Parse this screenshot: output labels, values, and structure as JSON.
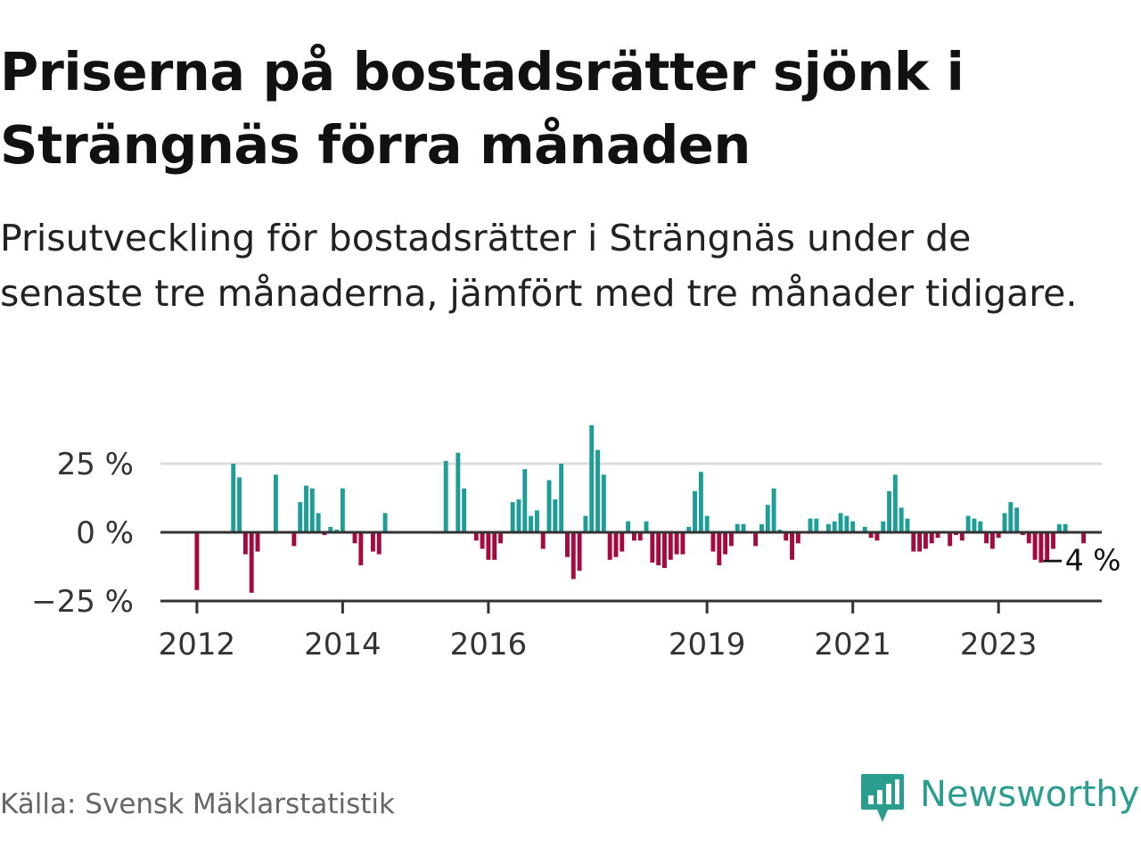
{
  "header": {
    "title": "Priserna på bostadsrätter sjönk i Strängnäs förra månaden",
    "subtitle": "Prisutveckling för bostadsrätter i Strängnäs under de senaste tre månaderna, jämfört med tre månader tidigare."
  },
  "footer": {
    "source": "Källa: Svensk Mäklarstatistik",
    "brand": "Newsworthy"
  },
  "colors": {
    "positive": "#1e9e96",
    "negative": "#a5093e",
    "gridline": "#dddddd",
    "axis": "#333333",
    "brand": "#2a9d8f"
  },
  "icons": {
    "logo": "bar-chart-speech-bubble-icon"
  },
  "chart_data": {
    "type": "bar",
    "title": "",
    "xlabel": "",
    "ylabel": "",
    "ylim": [
      -25,
      40
    ],
    "yticks": [
      {
        "value": 25,
        "label": "25 %"
      },
      {
        "value": 0,
        "label": "0 %"
      },
      {
        "value": -25,
        "label": "−25 %"
      }
    ],
    "xticks": [
      {
        "value": "2012-01",
        "label": "2012"
      },
      {
        "value": "2014-01",
        "label": "2014"
      },
      {
        "value": "2016-01",
        "label": "2016"
      },
      {
        "value": "2019-01",
        "label": "2019"
      },
      {
        "value": "2021-01",
        "label": "2021"
      },
      {
        "value": "2023-01",
        "label": "2023"
      }
    ],
    "x_start": "2011-07",
    "x_end": "2024-06",
    "grid": true,
    "legend": "none",
    "last_label": "−4 %",
    "series": [
      {
        "values": [
          [
            "2012-01",
            -21
          ],
          [
            "2012-07",
            25
          ],
          [
            "2012-08",
            20
          ],
          [
            "2012-09",
            -8
          ],
          [
            "2012-10",
            -22
          ],
          [
            "2012-11",
            -7
          ],
          [
            "2013-02",
            21
          ],
          [
            "2013-05",
            -5
          ],
          [
            "2013-06",
            11
          ],
          [
            "2013-07",
            17
          ],
          [
            "2013-08",
            16
          ],
          [
            "2013-09",
            7
          ],
          [
            "2013-10",
            -1
          ],
          [
            "2013-11",
            2
          ],
          [
            "2013-12",
            1
          ],
          [
            "2014-01",
            16
          ],
          [
            "2014-03",
            -4
          ],
          [
            "2014-04",
            -12
          ],
          [
            "2014-06",
            -7
          ],
          [
            "2014-07",
            -8
          ],
          [
            "2014-08",
            7
          ],
          [
            "2015-06",
            26
          ],
          [
            "2015-08",
            29
          ],
          [
            "2015-09",
            16
          ],
          [
            "2015-11",
            -3
          ],
          [
            "2015-12",
            -6
          ],
          [
            "2016-01",
            -10
          ],
          [
            "2016-02",
            -10
          ],
          [
            "2016-03",
            -4
          ],
          [
            "2016-05",
            11
          ],
          [
            "2016-06",
            12
          ],
          [
            "2016-07",
            23
          ],
          [
            "2016-08",
            6
          ],
          [
            "2016-09",
            8
          ],
          [
            "2016-10",
            -6
          ],
          [
            "2016-11",
            19
          ],
          [
            "2016-12",
            12
          ],
          [
            "2017-01",
            25
          ],
          [
            "2017-02",
            -9
          ],
          [
            "2017-03",
            -17
          ],
          [
            "2017-04",
            -14
          ],
          [
            "2017-05",
            6
          ],
          [
            "2017-06",
            39
          ],
          [
            "2017-07",
            30
          ],
          [
            "2017-08",
            21
          ],
          [
            "2017-09",
            -10
          ],
          [
            "2017-10",
            -9
          ],
          [
            "2017-11",
            -7
          ],
          [
            "2017-12",
            4
          ],
          [
            "2018-01",
            -3
          ],
          [
            "2018-02",
            -3
          ],
          [
            "2018-03",
            4
          ],
          [
            "2018-04",
            -11
          ],
          [
            "2018-05",
            -12
          ],
          [
            "2018-06",
            -13
          ],
          [
            "2018-07",
            -10
          ],
          [
            "2018-08",
            -8
          ],
          [
            "2018-09",
            -8
          ],
          [
            "2018-10",
            2
          ],
          [
            "2018-11",
            15
          ],
          [
            "2018-12",
            22
          ],
          [
            "2019-01",
            6
          ],
          [
            "2019-02",
            -7
          ],
          [
            "2019-03",
            -12
          ],
          [
            "2019-04",
            -8
          ],
          [
            "2019-05",
            -5
          ],
          [
            "2019-06",
            3
          ],
          [
            "2019-07",
            3
          ],
          [
            "2019-09",
            -5
          ],
          [
            "2019-10",
            3
          ],
          [
            "2019-11",
            10
          ],
          [
            "2019-12",
            16
          ],
          [
            "2020-01",
            1
          ],
          [
            "2020-02",
            -3
          ],
          [
            "2020-03",
            -10
          ],
          [
            "2020-04",
            -4
          ],
          [
            "2020-06",
            5
          ],
          [
            "2020-07",
            5
          ],
          [
            "2020-09",
            3
          ],
          [
            "2020-10",
            4
          ],
          [
            "2020-11",
            7
          ],
          [
            "2020-12",
            6
          ],
          [
            "2021-01",
            4
          ],
          [
            "2021-03",
            2
          ],
          [
            "2021-04",
            -2
          ],
          [
            "2021-05",
            -3
          ],
          [
            "2021-06",
            4
          ],
          [
            "2021-07",
            15
          ],
          [
            "2021-08",
            21
          ],
          [
            "2021-09",
            9
          ],
          [
            "2021-10",
            5
          ],
          [
            "2021-11",
            -7
          ],
          [
            "2021-12",
            -7
          ],
          [
            "2022-01",
            -6
          ],
          [
            "2022-02",
            -4
          ],
          [
            "2022-03",
            -2
          ],
          [
            "2022-05",
            -5
          ],
          [
            "2022-06",
            -1
          ],
          [
            "2022-07",
            -3
          ],
          [
            "2022-08",
            6
          ],
          [
            "2022-09",
            5
          ],
          [
            "2022-10",
            4
          ],
          [
            "2022-11",
            -4
          ],
          [
            "2022-12",
            -6
          ],
          [
            "2023-01",
            -2
          ],
          [
            "2023-02",
            7
          ],
          [
            "2023-03",
            11
          ],
          [
            "2023-04",
            9
          ],
          [
            "2023-05",
            -1
          ],
          [
            "2023-06",
            -4
          ],
          [
            "2023-07",
            -10
          ],
          [
            "2023-08",
            -11
          ],
          [
            "2023-09",
            -10
          ],
          [
            "2023-10",
            -6
          ],
          [
            "2023-11",
            3
          ],
          [
            "2023-12",
            3
          ],
          [
            "2024-03",
            -4
          ]
        ]
      }
    ]
  }
}
